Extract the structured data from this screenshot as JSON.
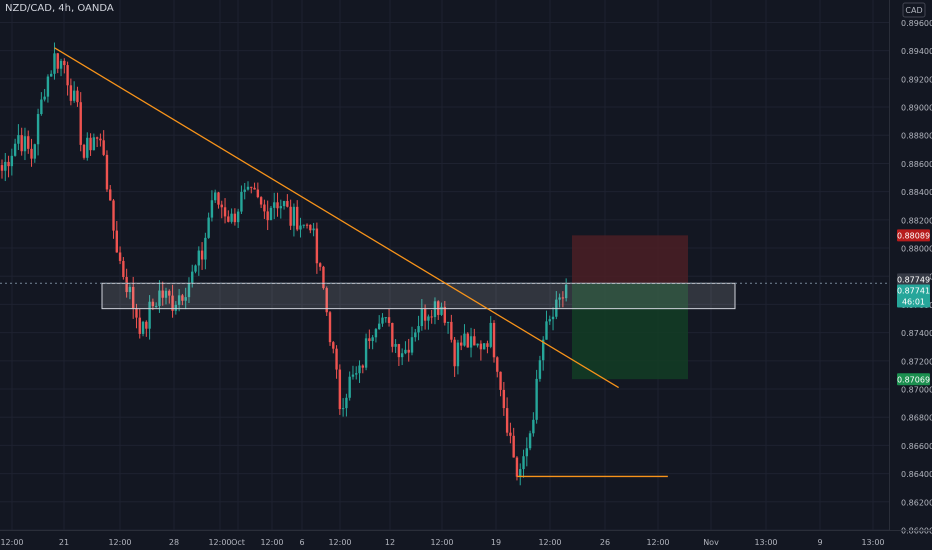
{
  "header": {
    "symbol": "NZD/CAD",
    "interval": "4h",
    "broker": "OANDA"
  },
  "currency_badge": "CAD",
  "colors": {
    "background": "#131722",
    "up": "#26a69a",
    "down": "#ef5350",
    "trendline": "#f7931a",
    "grid": "#1e2230",
    "axis_text": "#b2b5be",
    "stop_zone": "#4b1e25",
    "target_zone": "#133d24",
    "price_red": "#b71c1c",
    "price_green": "#1b8f4f"
  },
  "chart_data": {
    "type": "candlestick",
    "symbol": "NZD/CAD",
    "interval": "4h",
    "y_ticks": [
      "0.89600",
      "0.89400",
      "0.89200",
      "0.89000",
      "0.88800",
      "0.88600",
      "0.88400",
      "0.88200",
      "0.88000",
      "0.87800",
      "0.87600",
      "0.87400",
      "0.87200",
      "0.87000",
      "0.86800",
      "0.86600",
      "0.86400",
      "0.86200",
      "0.86000"
    ],
    "x_ticks": [
      "12:00",
      "21",
      "12:00",
      "28",
      "12:00",
      "Oct",
      "12:00",
      "6",
      "12:00",
      "12",
      "12:00",
      "19",
      "12:00",
      "26",
      "12:00",
      "Nov",
      "13:00",
      "9",
      "13:00"
    ],
    "ylim": [
      0.86,
      0.8966
    ],
    "price_labels": [
      {
        "value": "0.88089",
        "kind": "stop"
      },
      {
        "value": "0.87749",
        "kind": "crosshair"
      },
      {
        "value": "0.87741",
        "kind": "last"
      },
      {
        "value": "46:01",
        "kind": "countdown"
      },
      {
        "value": "0.87069",
        "kind": "target"
      }
    ],
    "position": {
      "entry": 0.8775,
      "stop": 0.8809,
      "target": 0.8707
    },
    "zone": {
      "top": 0.8775,
      "bottom": 0.8757
    },
    "trendline": {
      "start_bar": 16,
      "start_price": 0.8942,
      "end_bar": 188,
      "end_price": 0.8701
    },
    "support_line": {
      "start_bar": 157,
      "end_bar": 203,
      "price": 0.8638
    },
    "anchors": [
      [
        0,
        0.8855
      ],
      [
        5,
        0.888
      ],
      [
        9,
        0.8865
      ],
      [
        13,
        0.8915
      ],
      [
        16,
        0.8935
      ],
      [
        19,
        0.893
      ],
      [
        23,
        0.8895
      ],
      [
        25,
        0.8865
      ],
      [
        28,
        0.888
      ],
      [
        31,
        0.887
      ],
      [
        33,
        0.8825
      ],
      [
        36,
        0.879
      ],
      [
        40,
        0.876
      ],
      [
        43,
        0.874
      ],
      [
        45,
        0.8755
      ],
      [
        48,
        0.8768
      ],
      [
        52,
        0.8762
      ],
      [
        55,
        0.877
      ],
      [
        58,
        0.878
      ],
      [
        61,
        0.8795
      ],
      [
        64,
        0.8835
      ],
      [
        67,
        0.883
      ],
      [
        70,
        0.882
      ],
      [
        73,
        0.8835
      ],
      [
        77,
        0.8835
      ],
      [
        80,
        0.8825
      ],
      [
        83,
        0.8835
      ],
      [
        86,
        0.883
      ],
      [
        88,
        0.882
      ],
      [
        90,
        0.8822
      ],
      [
        92,
        0.8815
      ],
      [
        94,
        0.882
      ],
      [
        96,
        0.879
      ],
      [
        98,
        0.877
      ],
      [
        100,
        0.874
      ],
      [
        103,
        0.869
      ],
      [
        106,
        0.8705
      ],
      [
        109,
        0.871
      ],
      [
        112,
        0.874
      ],
      [
        115,
        0.8755
      ],
      [
        117,
        0.8745
      ],
      [
        120,
        0.8732
      ],
      [
        123,
        0.8728
      ],
      [
        126,
        0.8745
      ],
      [
        129,
        0.8755
      ],
      [
        131,
        0.876
      ],
      [
        134,
        0.876
      ],
      [
        136,
        0.8748
      ],
      [
        138,
        0.8725
      ],
      [
        141,
        0.8735
      ],
      [
        144,
        0.8727
      ],
      [
        147,
        0.8735
      ],
      [
        149,
        0.874
      ],
      [
        151,
        0.872
      ],
      [
        153,
        0.869
      ],
      [
        155,
        0.8665
      ],
      [
        157,
        0.864
      ],
      [
        159,
        0.8645
      ],
      [
        161,
        0.867
      ],
      [
        163,
        0.87
      ],
      [
        165,
        0.8735
      ],
      [
        168,
        0.8752
      ],
      [
        170,
        0.8758
      ],
      [
        172,
        0.8774
      ]
    ]
  }
}
